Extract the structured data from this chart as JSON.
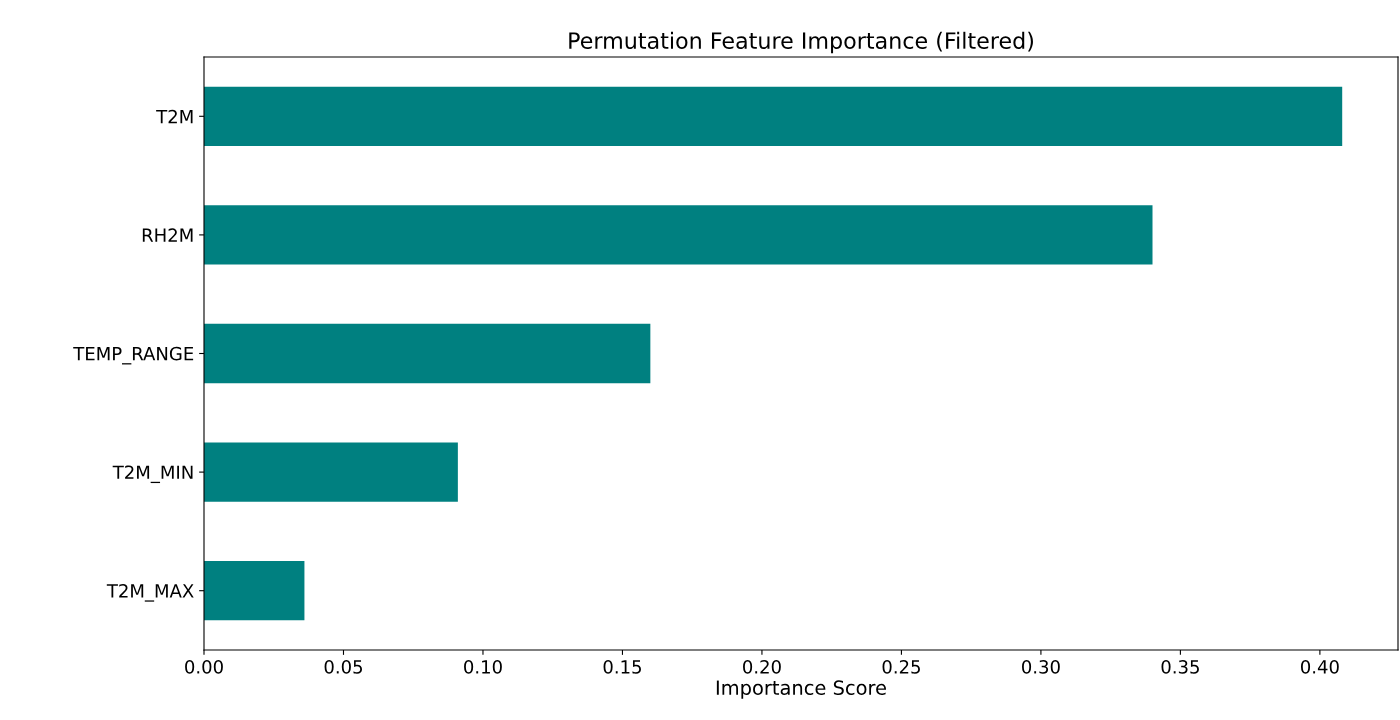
{
  "chart_data": {
    "type": "bar",
    "orientation": "horizontal",
    "title": "Permutation Feature Importance (Filtered)",
    "xlabel": "Importance Score",
    "categories": [
      "T2M",
      "RH2M",
      "TEMP_RANGE",
      "T2M_MIN",
      "T2M_MAX"
    ],
    "values": [
      0.408,
      0.34,
      0.16,
      0.091,
      0.036
    ],
    "color": "#008080",
    "xlim": [
      0,
      0.428
    ],
    "xticks": [
      {
        "value": 0,
        "label": "0.00"
      },
      {
        "value": 0.05,
        "label": "0.05"
      },
      {
        "value": 0.1,
        "label": "0.10"
      },
      {
        "value": 0.15,
        "label": "0.15"
      },
      {
        "value": 0.2,
        "label": "0.20"
      },
      {
        "value": 0.25,
        "label": "0.25"
      },
      {
        "value": 0.3,
        "label": "0.30"
      },
      {
        "value": 0.35,
        "label": "0.35"
      },
      {
        "value": 0.4,
        "label": "0.40"
      }
    ],
    "grid": false,
    "legend": false
  }
}
